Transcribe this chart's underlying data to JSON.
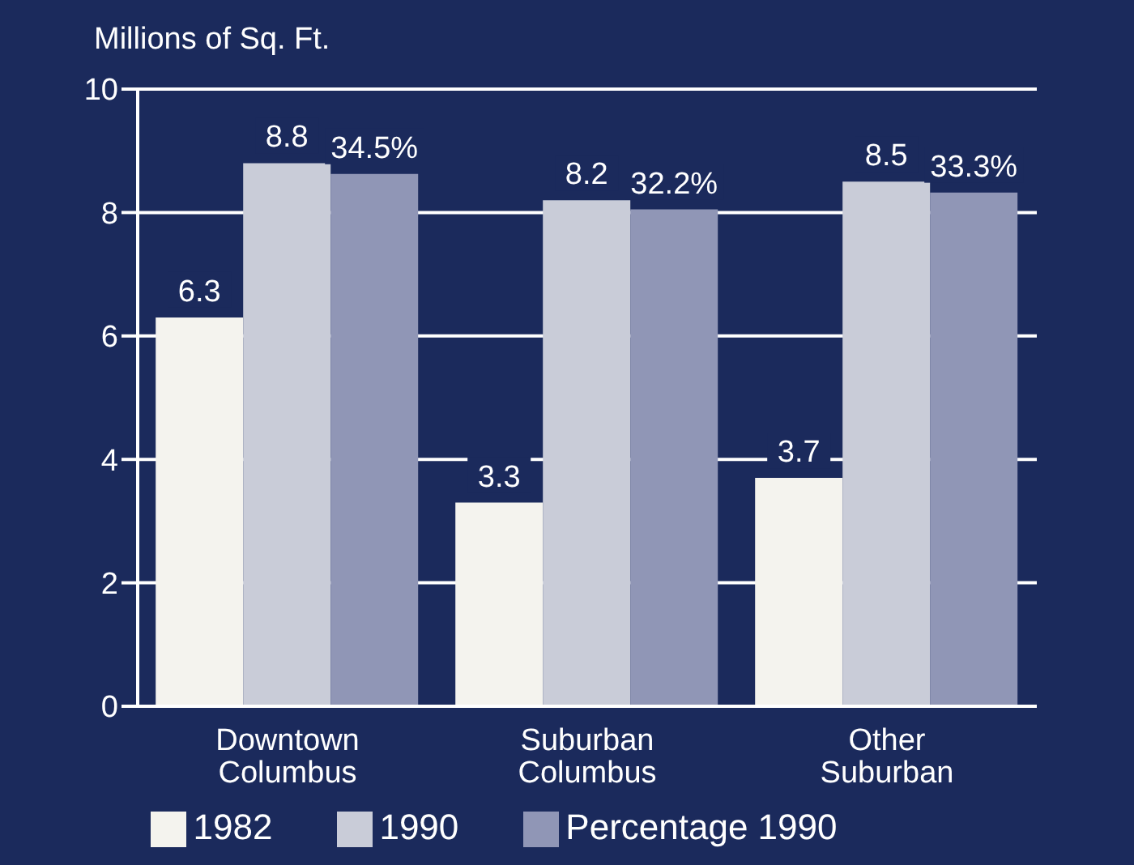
{
  "chart_data": {
    "type": "bar",
    "ylabel": "Millions of Sq. Ft.",
    "categories": [
      "Downtown Columbus",
      "Suburban Columbus",
      "Other Suburban"
    ],
    "series": [
      {
        "name": "1982",
        "color": "#f4f3ee",
        "values": [
          6.3,
          3.3,
          3.7
        ],
        "value_labels": [
          "6.3",
          "3.3",
          "3.7"
        ]
      },
      {
        "name": "1990",
        "color": "#c9ccd8",
        "values": [
          8.8,
          8.2,
          8.5
        ],
        "value_labels": [
          "8.8",
          "8.2",
          "8.5"
        ]
      },
      {
        "name": "Percentage 1990",
        "color": "#9096b6",
        "axis": "y2",
        "values": [
          34.5,
          32.2,
          33.3
        ],
        "value_labels": [
          "34.5%",
          "32.2%",
          "33.3%"
        ]
      }
    ],
    "y2lim": [
      0,
      40
    ],
    "ylim": [
      0,
      10
    ],
    "yticks": [
      0,
      2,
      4,
      6,
      8,
      10
    ],
    "grid": "y",
    "legend": "bottom"
  }
}
